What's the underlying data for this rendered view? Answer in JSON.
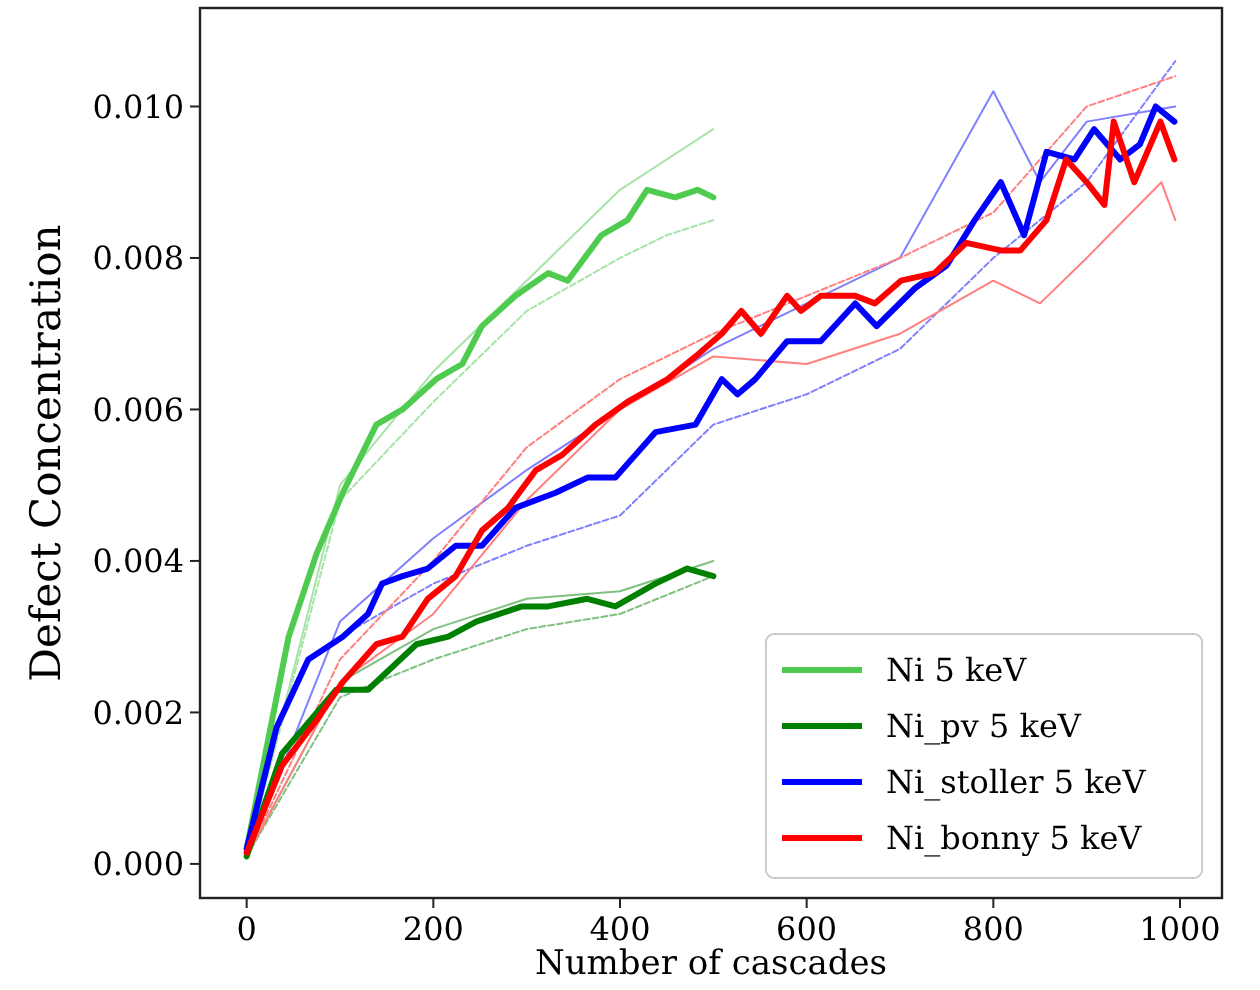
{
  "chart_data": {
    "type": "line",
    "xlabel": "Number of cascades",
    "ylabel": "Defect Concentration",
    "xlim": [
      -50,
      1045
    ],
    "ylim": [
      -0.00045,
      0.0113
    ],
    "xticks": [
      0,
      200,
      400,
      600,
      800,
      1000
    ],
    "yticks": [
      {
        "value": 0,
        "label": "0.000"
      },
      {
        "value": 0.002,
        "label": "0.002"
      },
      {
        "value": 0.004,
        "label": "0.004"
      },
      {
        "value": 0.006,
        "label": "0.006"
      },
      {
        "value": 0.008,
        "label": "0.008"
      },
      {
        "value": 0.01,
        "label": "0.010"
      }
    ],
    "legend": "bottom right",
    "grid": false,
    "series": [
      {
        "color": "#a6e3a6",
        "line_style": "solid",
        "x": [
          0,
          100,
          200,
          300,
          400,
          450,
          500
        ],
        "values": [
          0.0001,
          0.005,
          0.0065,
          0.0077,
          0.0089,
          0.0093,
          0.0097
        ]
      },
      {
        "color": "#a6e3a6",
        "line_style": "dashed",
        "x": [
          0,
          100,
          200,
          300,
          400,
          450,
          500
        ],
        "values": [
          0.0001,
          0.0048,
          0.0061,
          0.0073,
          0.008,
          0.0083,
          0.0085
        ]
      },
      {
        "color": "#80c080",
        "line_style": "solid",
        "x": [
          0,
          100,
          200,
          300,
          400,
          500
        ],
        "values": [
          0.0001,
          0.0024,
          0.0031,
          0.0035,
          0.0036,
          0.004
        ]
      },
      {
        "color": "#80c080",
        "line_style": "dashed",
        "x": [
          0,
          100,
          200,
          300,
          400,
          500
        ],
        "values": [
          0.0001,
          0.0022,
          0.0027,
          0.0031,
          0.0033,
          0.0038
        ]
      },
      {
        "color": "#8080ff",
        "line_style": "solid",
        "x": [
          0,
          100,
          200,
          300,
          400,
          500,
          600,
          700,
          800,
          850,
          900,
          995
        ],
        "values": [
          0.0001,
          0.0032,
          0.0043,
          0.0052,
          0.006,
          0.0068,
          0.0074,
          0.008,
          0.0102,
          0.009,
          0.0098,
          0.01
        ]
      },
      {
        "color": "#8080ff",
        "line_style": "dashed",
        "x": [
          100,
          200,
          300,
          400,
          500,
          600,
          700,
          800,
          900,
          995
        ],
        "values": [
          0.003,
          0.0037,
          0.0042,
          0.0046,
          0.0058,
          0.0062,
          0.0068,
          0.008,
          0.009,
          0.0106
        ]
      },
      {
        "color": "#ff8080",
        "line_style": "dashed",
        "x": [
          0,
          100,
          200,
          300,
          400,
          500,
          600,
          700,
          800,
          900,
          995
        ],
        "values": [
          0.0001,
          0.0027,
          0.004,
          0.0055,
          0.0064,
          0.007,
          0.0075,
          0.008,
          0.0086,
          0.01,
          0.0104
        ]
      },
      {
        "color": "#ff8080",
        "line_style": "solid",
        "x": [
          0,
          100,
          200,
          300,
          400,
          500,
          600,
          700,
          800,
          850,
          900,
          980,
          995
        ],
        "values": [
          0.0001,
          0.0024,
          0.0033,
          0.0048,
          0.006,
          0.0067,
          0.0066,
          0.007,
          0.0077,
          0.0074,
          0.008,
          0.009,
          0.0085
        ]
      },
      {
        "name": "Ni 5 keV",
        "color": "#4fcc4f",
        "line_style": "solid",
        "x": [
          0,
          24,
          45,
          75,
          103,
          139,
          167,
          203,
          231,
          252,
          288,
          323,
          344,
          380,
          408,
          429,
          459,
          483,
          500
        ],
        "values": [
          0.0002,
          0.0017,
          0.003,
          0.0041,
          0.0049,
          0.0058,
          0.006,
          0.0064,
          0.0066,
          0.0071,
          0.0075,
          0.0078,
          0.0077,
          0.0083,
          0.0085,
          0.0089,
          0.0088,
          0.0089,
          0.0088
        ]
      },
      {
        "name": "Ni_pv 5 keV",
        "color": "#008000",
        "line_style": "solid",
        "x": [
          0,
          38,
          96,
          130,
          182,
          216,
          246,
          295,
          323,
          365,
          395,
          438,
          472,
          500
        ],
        "values": [
          0.0001,
          0.00146,
          0.0023,
          0.0023,
          0.0029,
          0.003,
          0.0032,
          0.0034,
          0.0034,
          0.0035,
          0.0034,
          0.0037,
          0.0039,
          0.0038
        ]
      },
      {
        "name": "Ni_stoller 5 keV",
        "color": "#0000ff",
        "line_style": "solid",
        "x": [
          0,
          32,
          66,
          103,
          130,
          145,
          167,
          194,
          224,
          252,
          288,
          331,
          365,
          395,
          438,
          481,
          509,
          526,
          545,
          579,
          615,
          652,
          675,
          716,
          750,
          780,
          808,
          833,
          857,
          887,
          908,
          936,
          957,
          974,
          994
        ],
        "values": [
          0.0002,
          0.0018,
          0.0027,
          0.003,
          0.0033,
          0.0037,
          0.0038,
          0.0039,
          0.0042,
          0.0042,
          0.0047,
          0.0049,
          0.0051,
          0.0051,
          0.0057,
          0.0058,
          0.0064,
          0.0062,
          0.0064,
          0.0069,
          0.0069,
          0.0074,
          0.0071,
          0.0076,
          0.0079,
          0.0085,
          0.009,
          0.0083,
          0.0094,
          0.0093,
          0.0097,
          0.0093,
          0.0095,
          0.01,
          0.0098
        ]
      },
      {
        "name": "Ni_bonny 5 keV",
        "color": "#ff0000",
        "line_style": "solid",
        "x": [
          0,
          38,
          75,
          103,
          139,
          167,
          194,
          224,
          252,
          280,
          310,
          338,
          374,
          408,
          451,
          481,
          509,
          530,
          551,
          579,
          594,
          615,
          652,
          673,
          701,
          737,
          771,
          808,
          829,
          857,
          878,
          900,
          919,
          929,
          951,
          979,
          994
        ],
        "values": [
          0.00015,
          0.0013,
          0.0019,
          0.0024,
          0.0029,
          0.003,
          0.0035,
          0.0038,
          0.0044,
          0.0047,
          0.0052,
          0.0054,
          0.0058,
          0.0061,
          0.0064,
          0.0067,
          0.007,
          0.0073,
          0.007,
          0.0075,
          0.0073,
          0.0075,
          0.0075,
          0.0074,
          0.0077,
          0.0078,
          0.0082,
          0.0081,
          0.0081,
          0.0085,
          0.0093,
          0.009,
          0.0087,
          0.0098,
          0.009,
          0.0098,
          0.0093
        ]
      }
    ]
  }
}
